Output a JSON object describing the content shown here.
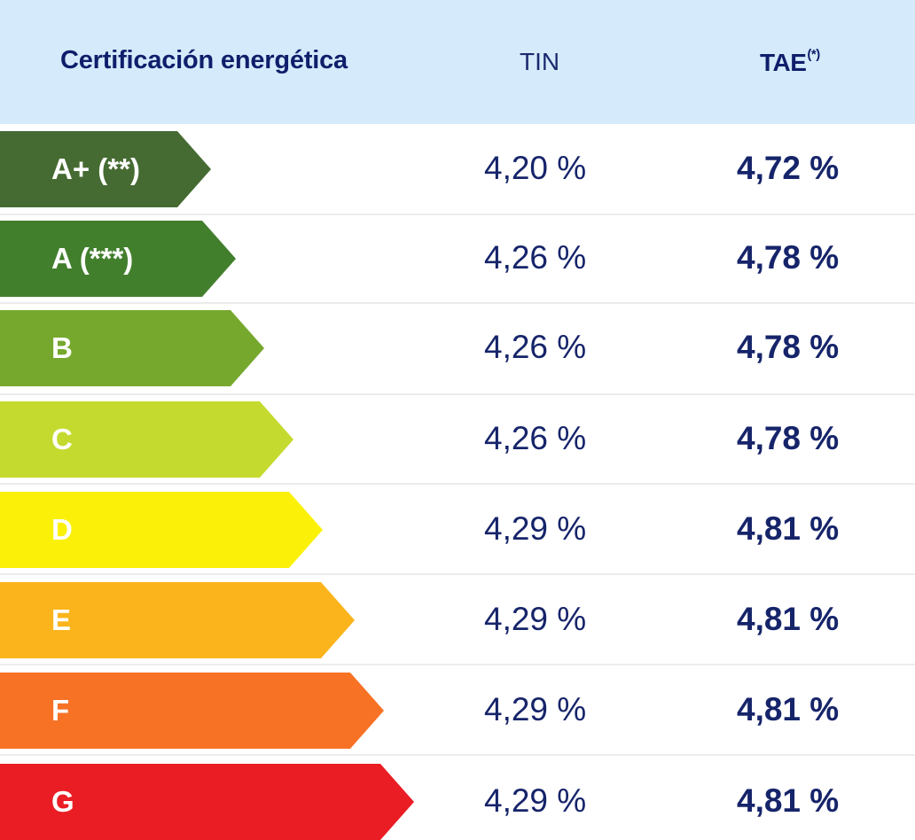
{
  "header": {
    "certification": "Certificación energética",
    "tin": "TIN",
    "tae": "TAE",
    "tae_note": "(*)"
  },
  "rows": [
    {
      "label": "A+ (**)",
      "tin": "4,20 %",
      "tae": "4,72 %",
      "color": "#456b32"
    },
    {
      "label": "A (***)",
      "tin": "4,26 %",
      "tae": "4,78 %",
      "color": "#427f2d"
    },
    {
      "label": "B",
      "tin": "4,26 %",
      "tae": "4,78 %",
      "color": "#76a82e"
    },
    {
      "label": "C",
      "tin": "4,26 %",
      "tae": "4,78 %",
      "color": "#c5da2e"
    },
    {
      "label": "D",
      "tin": "4,29 %",
      "tae": "4,81 %",
      "color": "#fbf108"
    },
    {
      "label": "E",
      "tin": "4,29 %",
      "tae": "4,81 %",
      "color": "#fbb41b"
    },
    {
      "label": "F",
      "tin": "4,29 %",
      "tae": "4,81 %",
      "color": "#f77225"
    },
    {
      "label": "G",
      "tin": "4,29 %",
      "tae": "4,81 %",
      "color": "#ea1d25"
    }
  ]
}
